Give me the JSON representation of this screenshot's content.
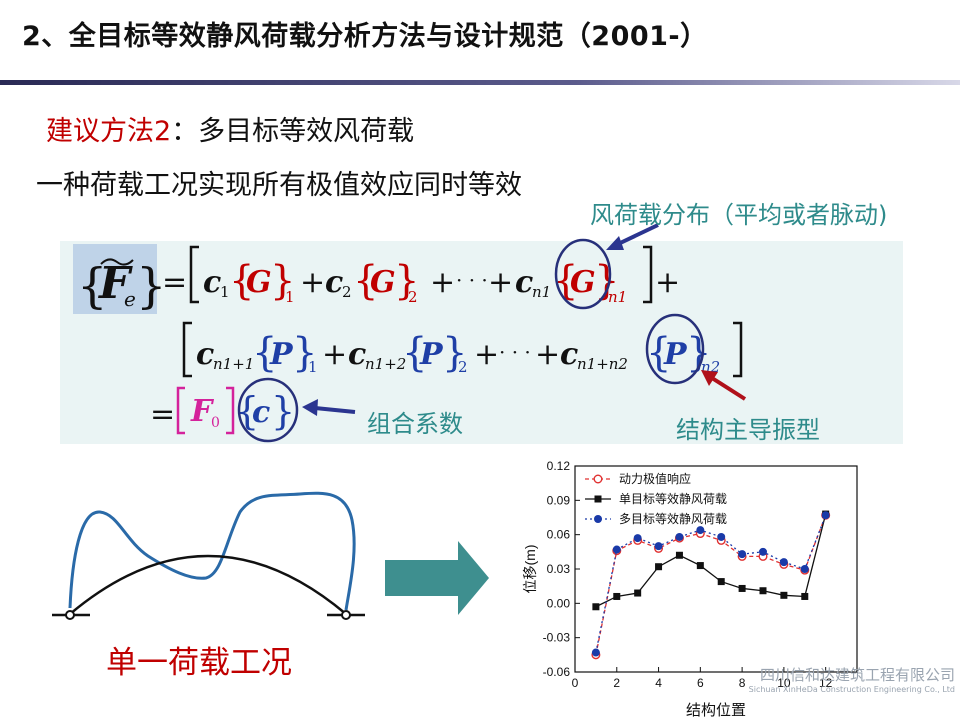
{
  "slide": {
    "title": "2、全目标等效静风荷载分析方法与设计规范（2001-）",
    "subhead_red": "建议方法2",
    "subhead_rest": "：多目标等效风荷载",
    "line2": "一种荷载工况实现所有极值效应同时等效",
    "annotations": {
      "load_distribution": "风荷载分布（平均或者脉动)",
      "combination_coeff": "组合系数",
      "dominant_modes": "结构主导振型"
    },
    "caption": "单一荷载工况",
    "watermark_cn": "四川信和达建筑工程有限公司",
    "watermark_en": "Sichuan XinHeDa Construction Engineering Co., Ltd"
  },
  "formula": {
    "lhs_F": "F",
    "lhs_sub": "e",
    "c": "c",
    "G": "G",
    "P": "P",
    "sub1": "1",
    "sub2": "2",
    "subn1": "n1",
    "subn1p1": "n1+1",
    "subn1p2": "n1+2",
    "subn1pn2": "n1+n2",
    "subn2": "n2",
    "F0": "F",
    "F0sub": "0",
    "plus": "+",
    "eq": "=",
    "dots": "· · ·"
  },
  "colors": {
    "red": "#c00000",
    "blue": "#1f3fa6",
    "navy": "#27307a",
    "magenta": "#d4229b",
    "teal": "#2e8b8b",
    "arrow_navy": "#2b3590",
    "arrow_red": "#b0101a",
    "block_arrow": "#3e8f8f"
  },
  "chart_data": {
    "type": "line",
    "xlabel": "结构位置",
    "ylabel": "位移(m)",
    "xlim": [
      0,
      13.5
    ],
    "ylim": [
      -0.06,
      0.12
    ],
    "xticks": [
      "0",
      "2",
      "4",
      "6",
      "8",
      "10",
      "12"
    ],
    "yticks": [
      "-0.06",
      "-0.03",
      "0.00",
      "0.03",
      "0.06",
      "0.09",
      "0.12"
    ],
    "legend_position": "top-left",
    "series": [
      {
        "name": "动力极值响应",
        "marker": "circle-open",
        "color": "#e03030",
        "x": [
          1,
          2,
          3,
          4,
          5,
          6,
          7,
          8,
          9,
          10,
          11,
          12
        ],
        "y": [
          -0.045,
          0.046,
          0.055,
          0.048,
          0.057,
          0.061,
          0.055,
          0.041,
          0.041,
          0.034,
          0.029,
          0.077
        ]
      },
      {
        "name": "单目标等效静风荷载",
        "marker": "square",
        "color": "#111111",
        "x": [
          1,
          2,
          3,
          4,
          5,
          6,
          7,
          8,
          9,
          10,
          11,
          12
        ],
        "y": [
          -0.003,
          0.006,
          0.009,
          0.032,
          0.042,
          0.033,
          0.019,
          0.013,
          0.011,
          0.007,
          0.006,
          0.078
        ]
      },
      {
        "name": "多目标等效静风荷载",
        "marker": "circle",
        "color": "#1a3aa8",
        "x": [
          1,
          2,
          3,
          4,
          5,
          6,
          7,
          8,
          9,
          10,
          11,
          12
        ],
        "y": [
          -0.043,
          0.047,
          0.057,
          0.05,
          0.058,
          0.064,
          0.058,
          0.043,
          0.045,
          0.036,
          0.03,
          0.077
        ]
      }
    ]
  }
}
